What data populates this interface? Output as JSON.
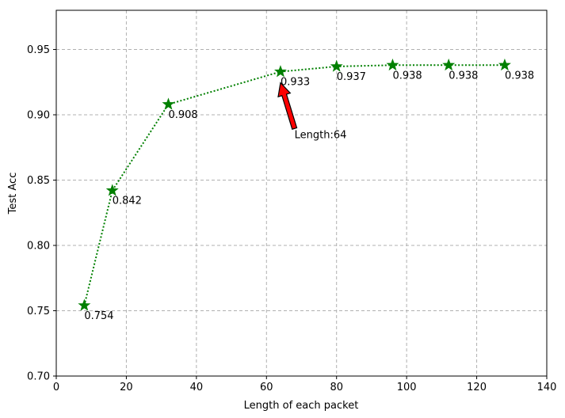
{
  "chart_data": {
    "type": "line",
    "xlabel": "Length of each packet",
    "ylabel": "Test Acc",
    "xlim": [
      0,
      140
    ],
    "ylim": [
      0.7,
      0.98
    ],
    "xticks": [
      0,
      20,
      40,
      60,
      80,
      100,
      120,
      140
    ],
    "xtick_labels": [
      "0",
      "20",
      "40",
      "60",
      "80",
      "100",
      "120",
      "140"
    ],
    "yticks": [
      0.7,
      0.75,
      0.8,
      0.85,
      0.9,
      0.95
    ],
    "ytick_labels": [
      "0.70",
      "0.75",
      "0.80",
      "0.85",
      "0.90",
      "0.95"
    ],
    "grid": true,
    "series": [
      {
        "color": "#008000",
        "line_style": "dotted",
        "marker": "star",
        "x": [
          8,
          16,
          32,
          64,
          80,
          96,
          112,
          128
        ],
        "y": [
          0.754,
          0.842,
          0.908,
          0.933,
          0.937,
          0.938,
          0.938,
          0.938
        ],
        "labels": [
          "0.754",
          "0.842",
          "0.908",
          "0.933",
          "0.937",
          "0.938",
          "0.938",
          "0.938"
        ]
      }
    ],
    "annotation": {
      "text": "Length:64",
      "point_x": 64,
      "point_y": 0.9245,
      "text_x": 68,
      "text_y": 0.882,
      "arrow_color": "#ff0000"
    }
  }
}
